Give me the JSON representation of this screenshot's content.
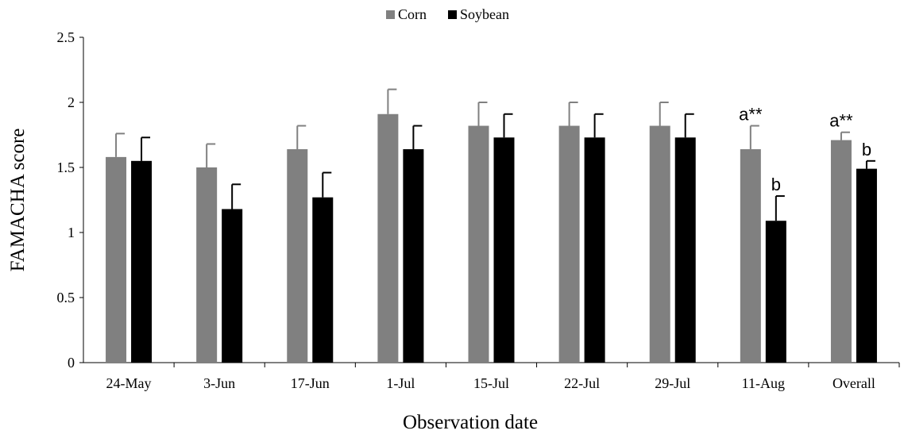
{
  "chart_data": {
    "type": "bar",
    "title": "",
    "xlabel": "Observation date",
    "ylabel": "FAMACHA score",
    "ylim": [
      0,
      2.5
    ],
    "yticks": [
      "0",
      "0.5",
      "1",
      "1.5",
      "2",
      "2.5"
    ],
    "grid": false,
    "legend_position": "top-center",
    "categories": [
      "24-May",
      "3-Jun",
      "17-Jun",
      "1-Jul",
      "15-Jul",
      "22-Jul",
      "29-Jul",
      "11-Aug",
      "Overall"
    ],
    "series": [
      {
        "name": "Corn",
        "color": "#808080",
        "values": [
          1.58,
          1.5,
          1.64,
          1.91,
          1.82,
          1.82,
          1.82,
          1.64,
          1.71
        ],
        "errors": [
          0.18,
          0.18,
          0.18,
          0.19,
          0.18,
          0.18,
          0.18,
          0.18,
          0.06
        ],
        "annotations": [
          "",
          "",
          "",
          "",
          "",
          "",
          "",
          "a**",
          "a**"
        ]
      },
      {
        "name": "Soybean",
        "color": "#000000",
        "values": [
          1.55,
          1.18,
          1.27,
          1.64,
          1.73,
          1.73,
          1.73,
          1.09,
          1.49
        ],
        "errors": [
          0.18,
          0.19,
          0.19,
          0.18,
          0.18,
          0.18,
          0.18,
          0.19,
          0.06
        ],
        "annotations": [
          "",
          "",
          "",
          "",
          "",
          "",
          "",
          "b",
          "b"
        ]
      }
    ]
  }
}
